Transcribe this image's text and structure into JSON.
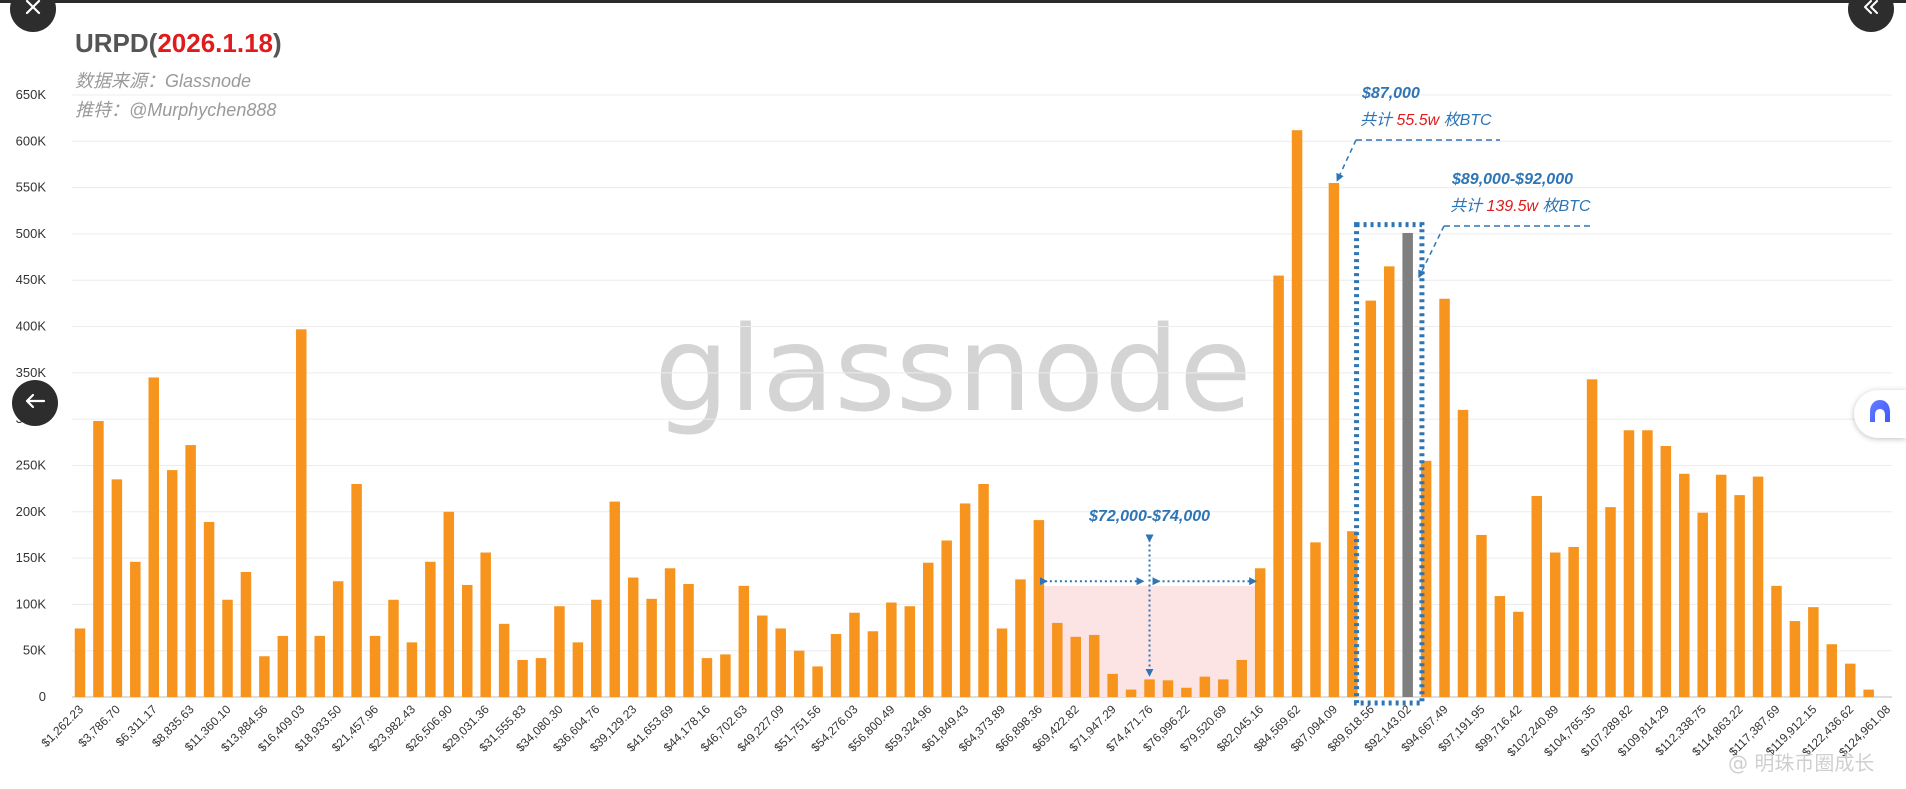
{
  "chart_data": {
    "type": "bar",
    "title_prefix": "URPD(",
    "title_date": "2026.1.18",
    "title_suffix": ")",
    "source_line": "数据来源：Glassnode",
    "twitter_line": "推特：@Murphychen888",
    "watermark": "glassnode",
    "y_ticks": [
      "0",
      "50K",
      "100K",
      "150K",
      "200K",
      "250K",
      "300K",
      "350K",
      "400K",
      "450K",
      "500K",
      "550K",
      "600K",
      "650K"
    ],
    "ylim": [
      0,
      650000
    ],
    "grid": true,
    "colors": {
      "bar": "#f7941d",
      "highlight": "#7f7f7f",
      "annotation": "#2e75b6",
      "emphasis": "#e01b1b",
      "shade": "#fde4e4"
    },
    "x_tick_labels": [
      "$1,262.23",
      "$3,786.70",
      "$6,311.17",
      "$8,835.63",
      "$11,360.10",
      "$13,884.56",
      "$16,409.03",
      "$18,933.50",
      "$21,457.96",
      "$23,982.43",
      "$26,506.90",
      "$29,031.36",
      "$31,555.83",
      "$34,080.30",
      "$36,604.76",
      "$39,129.23",
      "$41,653.69",
      "$44,178.16",
      "$46,702.63",
      "$49,227.09",
      "$51,751.56",
      "$54,276.03",
      "$56,800.49",
      "$59,324.96",
      "$61,849.43",
      "$64,373.89",
      "$66,898.36",
      "$69,422.82",
      "$71,947.29",
      "$74,471.76",
      "$76,996.22",
      "$79,520.69",
      "$82,045.16",
      "$84,569.62",
      "$87,094.09",
      "$89,618.56",
      "$92,143.02",
      "$94,667.49",
      "$97,191.95",
      "$99,716.42",
      "$102,240.89",
      "$104,765.35",
      "$107,289.82",
      "$109,814.29",
      "$112,338.75",
      "$114,863.22",
      "$117,387.69",
      "$119,912.15",
      "$122,436.62",
      "$124,961.08"
    ],
    "values": [
      74000,
      298000,
      235000,
      146000,
      345000,
      245000,
      272000,
      189000,
      105000,
      135000,
      44000,
      66000,
      397000,
      66000,
      125000,
      230000,
      66000,
      105000,
      59000,
      146000,
      200000,
      121000,
      156000,
      79000,
      40000,
      42000,
      98000,
      59000,
      105000,
      211000,
      129000,
      106000,
      139000,
      122000,
      42000,
      46000,
      120000,
      88000,
      74000,
      50000,
      33000,
      68000,
      91000,
      71000,
      102000,
      98000,
      145000,
      169000,
      209000,
      230000,
      74000,
      127000,
      191000,
      80000,
      65000,
      67000,
      25000,
      8000,
      19000,
      18000,
      10000,
      22000,
      19000,
      40000,
      139000,
      455000,
      612000,
      167000,
      555000,
      179000,
      428000,
      465000,
      501000,
      255000,
      430000,
      310000,
      175000,
      109000,
      92000,
      217000,
      156000,
      162000,
      343000,
      205000,
      288000,
      288000,
      271000,
      241000,
      199000,
      240000,
      218000,
      238000,
      120000,
      82000,
      97000,
      57000,
      36000,
      8000
    ],
    "highlight_index": 72,
    "annotations": [
      {
        "title": "$87,000",
        "prefix": "共计 ",
        "amount": "55.5w",
        "suffix": " 枚BTC"
      },
      {
        "title": "$89,000-$92,000",
        "prefix": "共计 ",
        "amount": "139.5w",
        "suffix": " 枚BTC"
      },
      {
        "title": "$72,000-$74,000"
      }
    ],
    "credit": "@ 明珠币圈成长"
  },
  "ui": {
    "close_icon": "close-icon",
    "collapse_icon": "double-chevron-left-icon",
    "back_icon": "arrow-left-icon",
    "assistant_icon": "assistant-app-icon"
  }
}
